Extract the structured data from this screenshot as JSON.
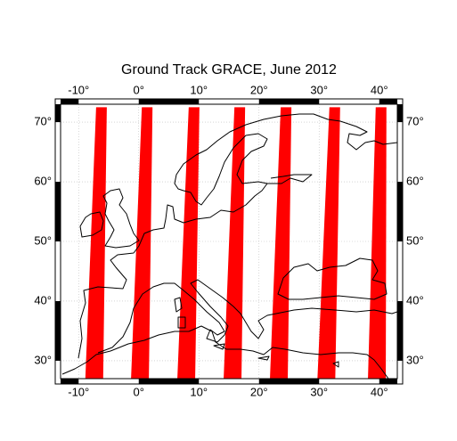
{
  "chart_data": {
    "type": "map",
    "title": "Ground Track GRACE, June 2012",
    "xlim": [
      -13,
      43
    ],
    "ylim": [
      27,
      73
    ],
    "xticks": [
      {
        "value": -10,
        "label": "-10°"
      },
      {
        "value": 0,
        "label": "0°"
      },
      {
        "value": 10,
        "label": "10°"
      },
      {
        "value": 20,
        "label": "20°"
      },
      {
        "value": 30,
        "label": "30°"
      },
      {
        "value": 40,
        "label": "40°"
      }
    ],
    "yticks": [
      {
        "value": 30,
        "label": "30°"
      },
      {
        "value": 40,
        "label": "40°"
      },
      {
        "value": 50,
        "label": "50°"
      },
      {
        "value": 60,
        "label": "60°"
      },
      {
        "value": 70,
        "label": "70°"
      }
    ],
    "grid": true,
    "track_color": "#ff0000",
    "track_max_lat": 72.5,
    "tracks": [
      {
        "lon_north": -6.2,
        "lon_south": -7.4
      },
      {
        "lon_north": 1.4,
        "lon_south": 0.2
      },
      {
        "lon_north": 9.2,
        "lon_south": 7.9
      },
      {
        "lon_north": 16.8,
        "lon_south": 15.6
      },
      {
        "lon_north": 24.5,
        "lon_south": 23.3
      },
      {
        "lon_north": 32.6,
        "lon_south": 31.2
      },
      {
        "lon_north": 40.3,
        "lon_south": 39.6
      }
    ]
  }
}
